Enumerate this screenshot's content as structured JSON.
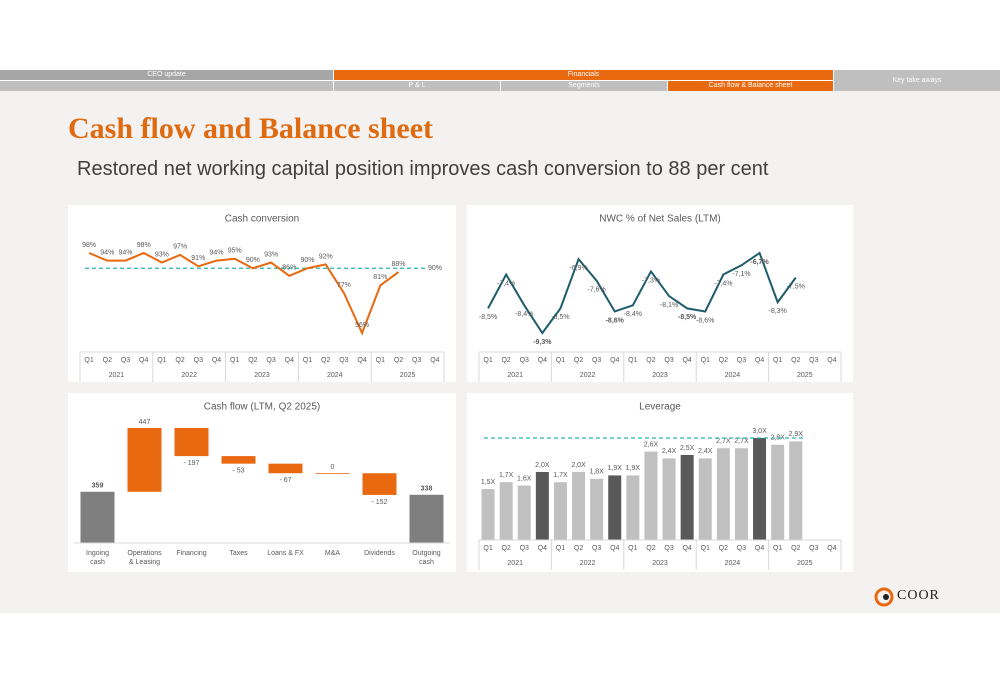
{
  "nav": {
    "top": [
      "CEO update",
      "Financials",
      "Key take aways"
    ],
    "sub": [
      "P & L",
      "Segments",
      "Cash flow & Balance sheet"
    ],
    "active_top": "Financials",
    "active_sub": "Cash flow & Balance sheet"
  },
  "title": "Cash flow and Balance sheet",
  "subtitle": "Restored net working capital position improves cash conversion to 88 per cent",
  "logo": "COOR",
  "chart_data": [
    {
      "type": "line",
      "title": "Cash conversion",
      "categories": [
        "Q1",
        "Q2",
        "Q3",
        "Q4",
        "Q1",
        "Q2",
        "Q3",
        "Q4",
        "Q1",
        "Q2",
        "Q3",
        "Q4",
        "Q1",
        "Q2",
        "Q3",
        "Q4",
        "Q1",
        "Q2",
        "Q3",
        "Q4"
      ],
      "years": [
        "2021",
        "2022",
        "2023",
        "2024",
        "2025"
      ],
      "color": "#e8690f",
      "label_position": "above",
      "values": [
        98,
        94,
        94,
        98,
        93,
        97,
        91,
        94,
        95,
        90,
        93,
        86,
        90,
        92,
        77,
        56,
        81,
        88,
        null,
        null
      ],
      "value_labels": [
        "98%",
        "94%",
        "94%",
        "98%",
        "93%",
        "97%",
        "91%",
        "94%",
        "95%",
        "90%",
        "93%",
        "86%",
        "90%",
        "92%",
        "77%",
        "56%",
        "81%",
        "88%",
        null,
        null
      ],
      "target": {
        "value": 90,
        "label": "90%",
        "color": "#2ab3b1"
      }
    },
    {
      "type": "line",
      "title": "NWC % of Net Sales (LTM)",
      "categories": [
        "Q1",
        "Q2",
        "Q3",
        "Q4",
        "Q1",
        "Q2",
        "Q3",
        "Q4",
        "Q1",
        "Q2",
        "Q3",
        "Q4",
        "Q1",
        "Q2",
        "Q3",
        "Q4",
        "Q1",
        "Q2",
        "Q3",
        "Q4"
      ],
      "years": [
        "2021",
        "2022",
        "2023",
        "2024",
        "2025"
      ],
      "color": "#1f5c6b",
      "label_position": "below",
      "bold_category": "Q4",
      "values": [
        -8.5,
        -7.4,
        -8.4,
        -9.3,
        -8.5,
        -6.9,
        -7.6,
        -8.6,
        -8.4,
        -7.3,
        -8.1,
        -8.5,
        -8.6,
        -7.4,
        -7.1,
        -6.7,
        -8.3,
        -7.5,
        null,
        null
      ],
      "value_labels": [
        "-8,5%",
        "-7,4%",
        "-8,4%",
        "-9,3%",
        "-8,5%",
        "-6,9%",
        "-7,6%",
        "-8,6%",
        "-8,4%",
        "-7,3%",
        "-8,1%",
        "-8,5%",
        "-8,6%",
        "-7,4%",
        "-7,1%",
        "-6,7%",
        "-8,3%",
        "-7,5%",
        null,
        null
      ]
    },
    {
      "type": "waterfall",
      "title": "Cash flow (LTM, Q2 2025)",
      "categories": [
        "Ingoing cash",
        "Operations & Leasing",
        "Financing",
        "Taxes",
        "Loans & FX",
        "M&A",
        "Dividends",
        "Outgoing cash"
      ],
      "measure": [
        "absolute",
        "relative",
        "relative",
        "relative",
        "relative",
        "relative",
        "relative",
        "absolute"
      ],
      "values": [
        359,
        447,
        -197,
        -53,
        -67,
        0,
        -152,
        338
      ],
      "value_labels": [
        "359",
        "447",
        "- 197",
        "- 53",
        "- 67",
        "0",
        "- 152",
        "338"
      ],
      "colors": [
        "#7f7f7f",
        "#e8690f",
        "#e8690f",
        "#e8690f",
        "#e8690f",
        "#e8690f",
        "#e8690f",
        "#7f7f7f"
      ]
    },
    {
      "type": "bar",
      "title": "Leverage",
      "categories": [
        "Q1",
        "Q2",
        "Q3",
        "Q4",
        "Q1",
        "Q2",
        "Q3",
        "Q4",
        "Q1",
        "Q2",
        "Q3",
        "Q4",
        "Q1",
        "Q2",
        "Q3",
        "Q4",
        "Q1",
        "Q2",
        "Q3",
        "Q4"
      ],
      "years": [
        "2021",
        "2022",
        "2023",
        "2024",
        "2025"
      ],
      "values": [
        1.5,
        1.7,
        1.6,
        2.0,
        1.7,
        2.0,
        1.8,
        1.9,
        1.9,
        2.6,
        2.4,
        2.5,
        2.4,
        2.7,
        2.7,
        3.0,
        2.8,
        2.9,
        null,
        null
      ],
      "value_labels": [
        "1,5X",
        "1,7X",
        "1,6X",
        "2,0X",
        "1,7X",
        "2,0X",
        "1,8X",
        "1,9X",
        "1,9X",
        "2,6X",
        "2,4X",
        "2,5X",
        "2,4X",
        "2,7X",
        "2,7X",
        "3,0X",
        "2,8X",
        "2,9X",
        null,
        null
      ],
      "colors": [
        "#c0c0c0",
        "#c0c0c0",
        "#c0c0c0",
        "#595959",
        "#c0c0c0",
        "#c0c0c0",
        "#c0c0c0",
        "#595959",
        "#c0c0c0",
        "#c0c0c0",
        "#c0c0c0",
        "#595959",
        "#c0c0c0",
        "#c0c0c0",
        "#c0c0c0",
        "#595959",
        "#c0c0c0",
        "#c0c0c0",
        "#c0c0c0",
        "#595959"
      ],
      "target": {
        "value": 3.0,
        "color": "#2ab3b1"
      }
    }
  ]
}
